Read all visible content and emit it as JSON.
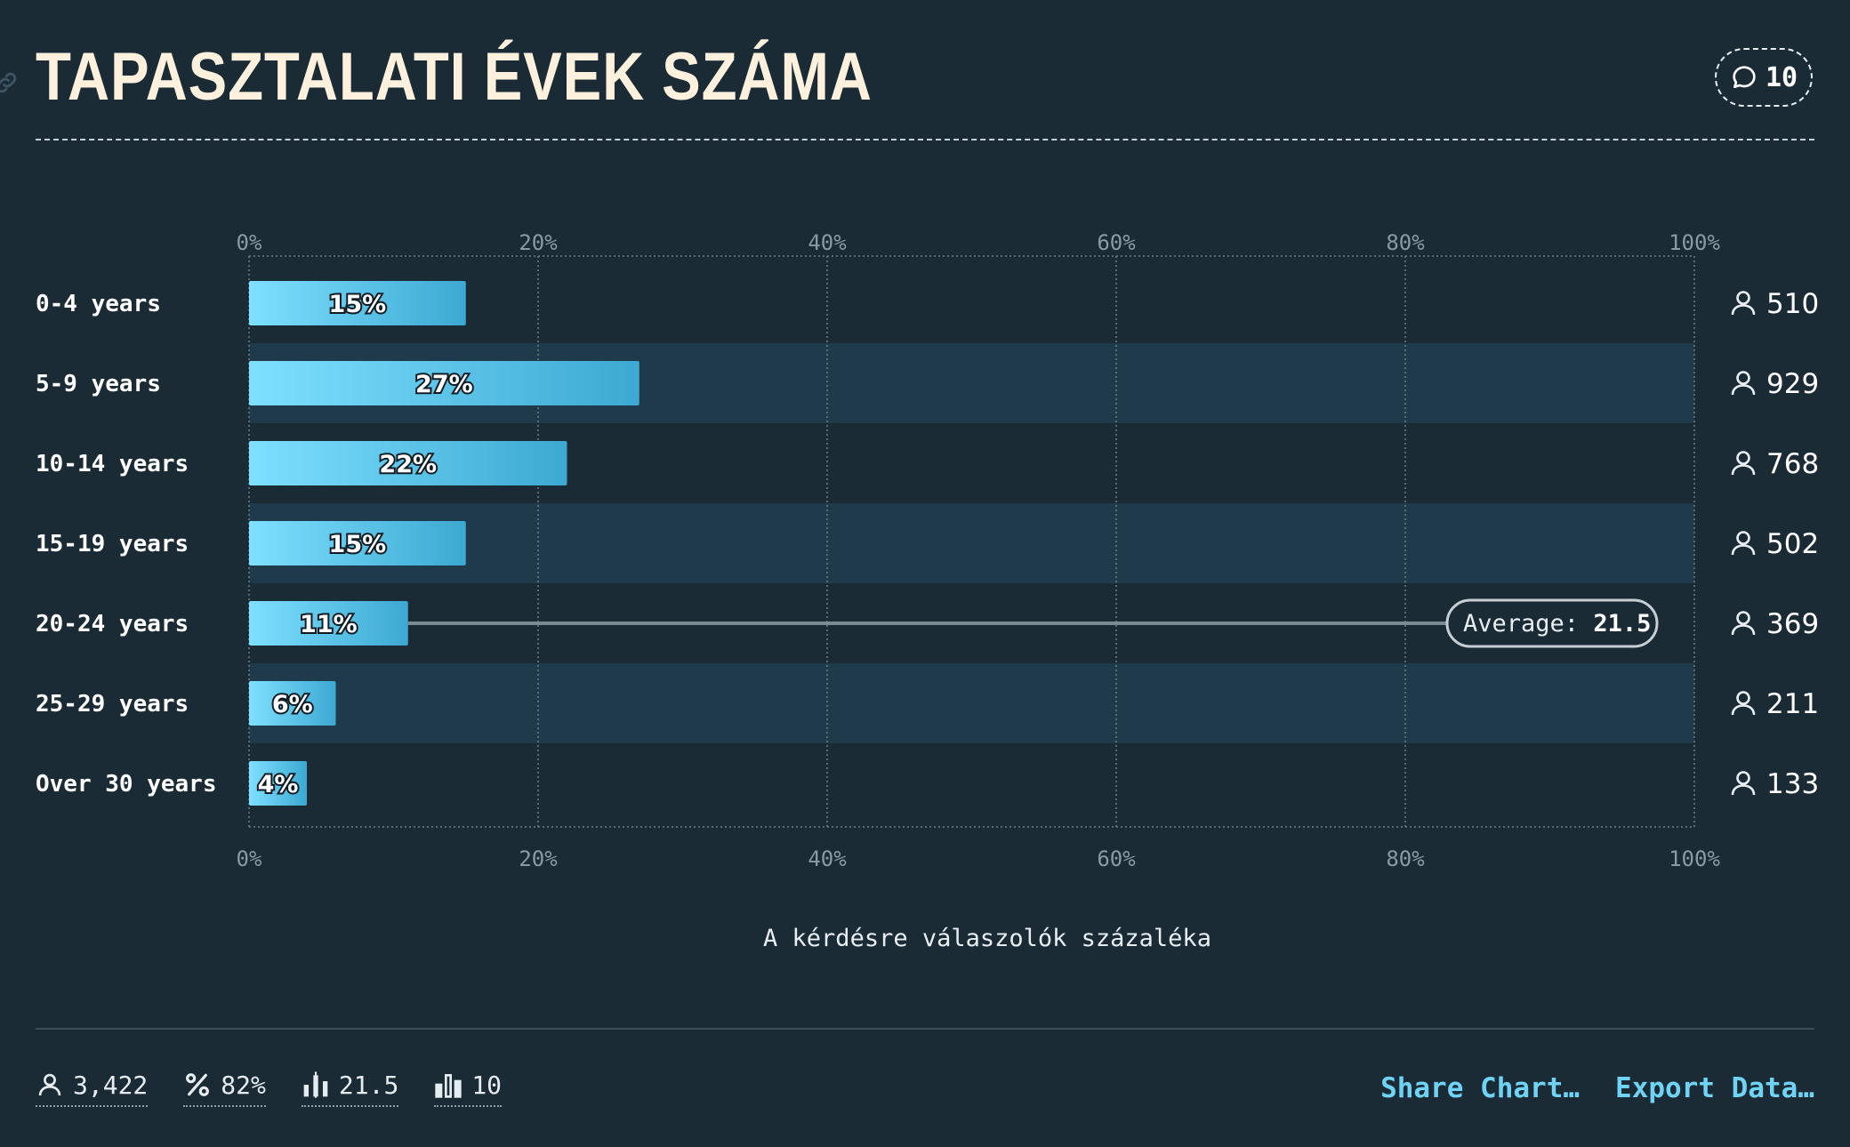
{
  "header": {
    "title": "TAPASZTALATI ÉVEK SZÁMA",
    "comments_count": "10"
  },
  "chart_data": {
    "type": "bar",
    "orientation": "horizontal",
    "categories": [
      "0-4 years",
      "5-9 years",
      "10-14 years",
      "15-19 years",
      "20-24 years",
      "25-29 years",
      "Over 30 years"
    ],
    "values": [
      15,
      27,
      22,
      15,
      11,
      6,
      4
    ],
    "value_labels": [
      "15%",
      "27%",
      "22%",
      "15%",
      "11%",
      "6%",
      "4%"
    ],
    "counts": [
      "510",
      "929",
      "768",
      "502",
      "369",
      "211",
      "133"
    ],
    "xlim": [
      0,
      100
    ],
    "xticks": [
      "0%",
      "20%",
      "40%",
      "60%",
      "80%",
      "100%"
    ],
    "xlabel": "A kérdésre válaszolók százaléka",
    "average_label": "Average:",
    "average_value": "21.5",
    "grid": true,
    "colors": {
      "bar_start": "#7fe0ff",
      "bar_end": "#3ca9d2",
      "band": "#1f3a4a",
      "background": "#1a2b36"
    }
  },
  "footer": {
    "respondents": "3,422",
    "percent": "82%",
    "average": "21.5",
    "median": "10",
    "share_label": "Share Chart…",
    "export_label": "Export Data…"
  }
}
